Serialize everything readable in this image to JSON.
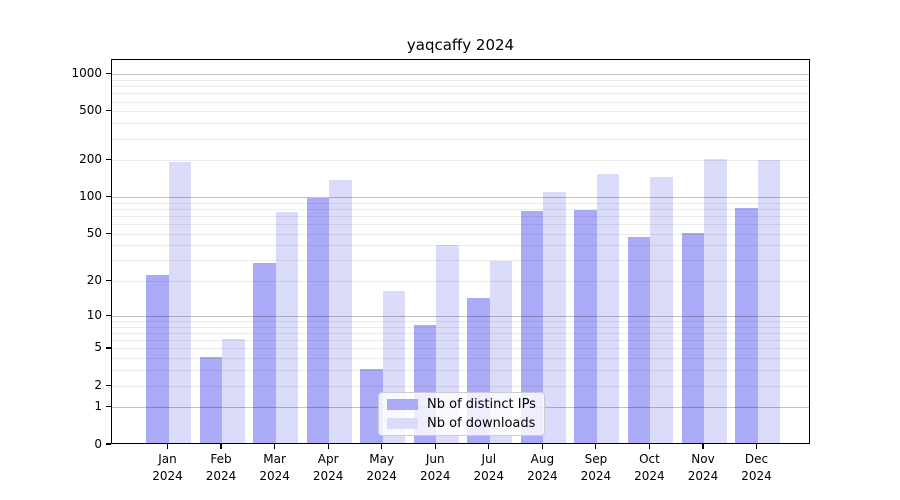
{
  "title": "yaqcaffy 2024",
  "chart_data": {
    "type": "bar",
    "title": "yaqcaffy 2024",
    "y_scale": "log1p",
    "y_axis_max": 1317,
    "grid": true,
    "legend_position": "lower center",
    "x_categories": [
      "Jan",
      "Feb",
      "Mar",
      "Apr",
      "May",
      "Jun",
      "Jul",
      "Aug",
      "Sep",
      "Oct",
      "Nov",
      "Dec"
    ],
    "x_year": "2024",
    "y_tick_labels": [
      "0",
      "1",
      "2",
      "5",
      "10",
      "20",
      "50",
      "100",
      "200",
      "500",
      "1000"
    ],
    "y_tick_values": [
      0,
      1,
      2,
      5,
      10,
      20,
      50,
      100,
      200,
      500,
      1000
    ],
    "y_major_gridlines": [
      1,
      10,
      100,
      1000
    ],
    "y_minor_gridlines": [
      2,
      3,
      4,
      5,
      6,
      7,
      8,
      9,
      20,
      30,
      40,
      50,
      60,
      70,
      80,
      90,
      200,
      300,
      400,
      500,
      600,
      700,
      800,
      900
    ],
    "series": [
      {
        "name": "Nb of distinct IPs",
        "color": "#aaaaf7",
        "values": [
          22,
          4,
          28,
          95,
          3,
          8,
          14,
          75,
          77,
          46,
          49,
          79
        ]
      },
      {
        "name": "Nb of downloads",
        "color": "#dbdbfa",
        "values": [
          190,
          6,
          74,
          135,
          16,
          39,
          29,
          108,
          150,
          141,
          200,
          195
        ]
      }
    ]
  },
  "colors": {
    "background": "#ffffff",
    "spine": "#000000",
    "major_grid": "rgba(0,0,0,0.24)",
    "minor_grid": "rgba(0,0,0,0.075)",
    "bar_distinct_ips": "#aaaaf7",
    "bar_downloads": "#dbdbfa"
  }
}
